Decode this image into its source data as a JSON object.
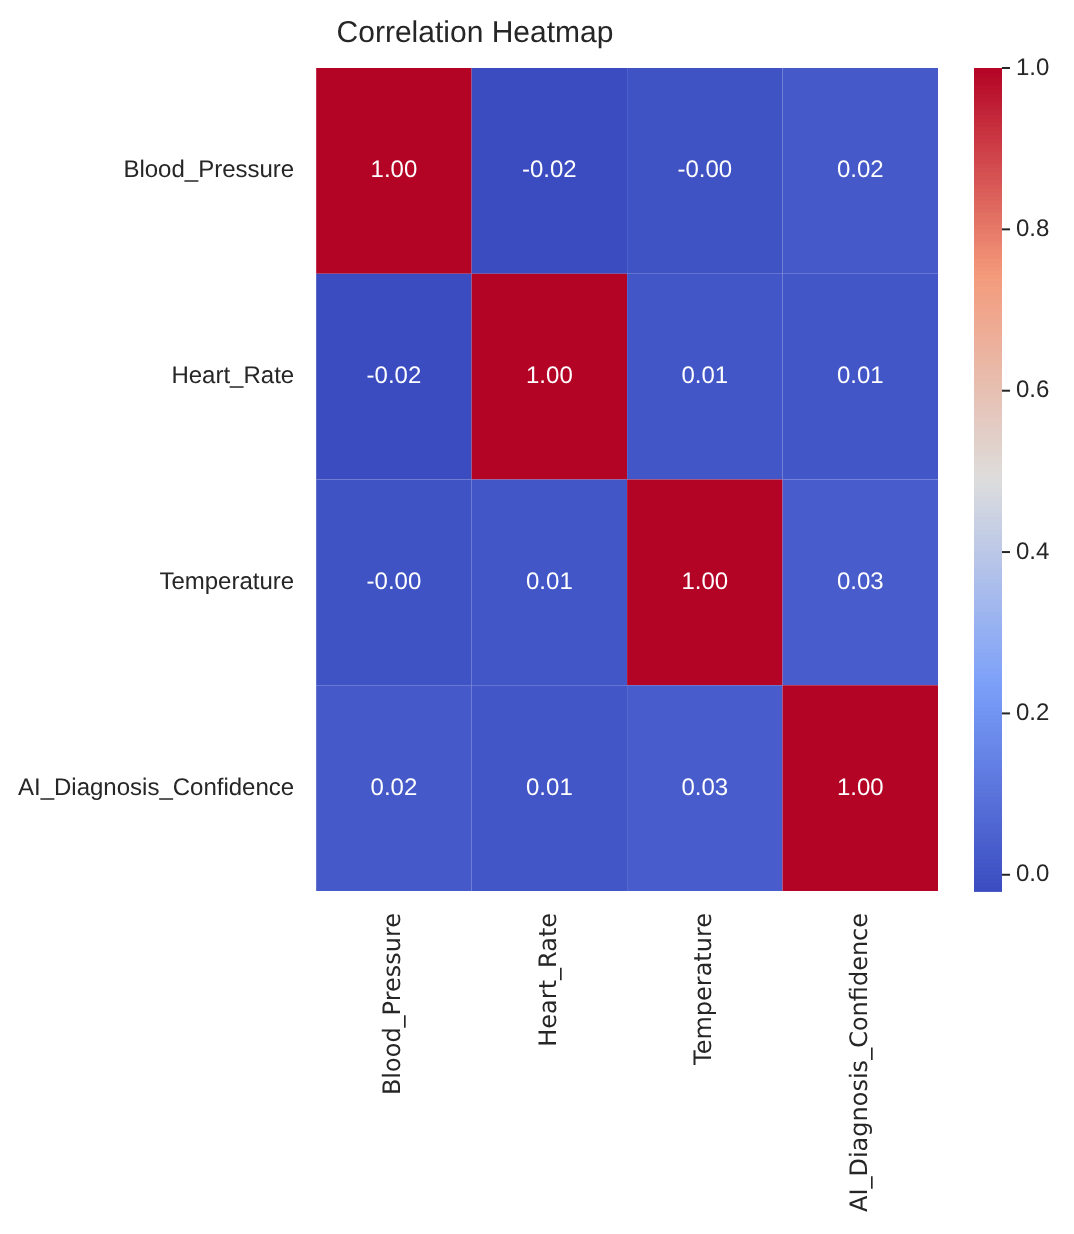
{
  "chart_data": {
    "type": "heatmap",
    "title": "Correlation Heatmap",
    "categories": [
      "Blood_Pressure",
      "Heart_Rate",
      "Temperature",
      "AI_Diagnosis_Confidence"
    ],
    "y_categories": [
      "Blood_Pressure",
      "Heart_Rate",
      "Temperature",
      "AI_Diagnosis_Confidence"
    ],
    "cells": [
      [
        1.0,
        -0.02,
        0,
        0.02
      ],
      [
        -0.02,
        1.0,
        0.01,
        0.01
      ],
      [
        0,
        0.01,
        1.0,
        0.03
      ],
      [
        0.02,
        0.01,
        0.03,
        1.0
      ]
    ],
    "cell_labels": [
      [
        "1.00",
        "-0.02",
        "-0.00",
        "0.02"
      ],
      [
        "-0.02",
        "1.00",
        "0.01",
        "0.01"
      ],
      [
        "-0.00",
        "0.01",
        "1.00",
        "0.03"
      ],
      [
        "0.02",
        "0.01",
        "0.03",
        "1.00"
      ]
    ],
    "clim": [
      -0.02,
      1.0
    ],
    "cticks": [
      {
        "value": 0,
        "label": "0.0"
      },
      {
        "value": 0.2,
        "label": "0.2"
      },
      {
        "value": 0.4,
        "label": "0.4"
      },
      {
        "value": 0.6,
        "label": "0.6"
      },
      {
        "value": 0.8,
        "label": "0.8"
      },
      {
        "value": 1.0,
        "label": "1.0"
      }
    ]
  }
}
